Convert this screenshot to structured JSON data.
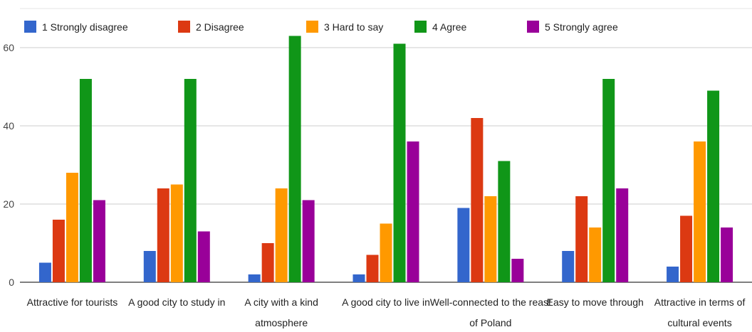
{
  "chart_data": {
    "type": "bar",
    "title": "",
    "xlabel": "",
    "ylabel": "",
    "ylim": [
      0,
      65
    ],
    "yticks": [
      0,
      20,
      40,
      60
    ],
    "grid": true,
    "legend": "top",
    "categories": [
      [
        "Attractive for tourists"
      ],
      [
        "A good city to study in"
      ],
      [
        "A city with a kind",
        "atmosphere"
      ],
      [
        "A good city to live in"
      ],
      [
        "Well-connected to the reast",
        "of Poland"
      ],
      [
        "Easy to move through"
      ],
      [
        "Attractive in terms of",
        "cultural events"
      ]
    ],
    "series": [
      {
        "num": "1",
        "name": "Strongly disagree",
        "color": "#3366cc",
        "values": [
          5,
          8,
          2,
          2,
          19,
          8,
          4
        ]
      },
      {
        "num": "2",
        "name": "Disagree",
        "color": "#dc3912",
        "values": [
          16,
          24,
          10,
          7,
          42,
          22,
          17
        ]
      },
      {
        "num": "3",
        "name": "Hard to say",
        "color": "#ff9900",
        "values": [
          28,
          25,
          24,
          15,
          22,
          14,
          36
        ]
      },
      {
        "num": "4",
        "name": "Agree",
        "color": "#109618",
        "values": [
          52,
          52,
          63,
          61,
          31,
          52,
          49
        ]
      },
      {
        "num": "5",
        "name": "Strongly agree",
        "color": "#990099",
        "values": [
          21,
          13,
          21,
          36,
          6,
          24,
          14
        ]
      }
    ]
  }
}
